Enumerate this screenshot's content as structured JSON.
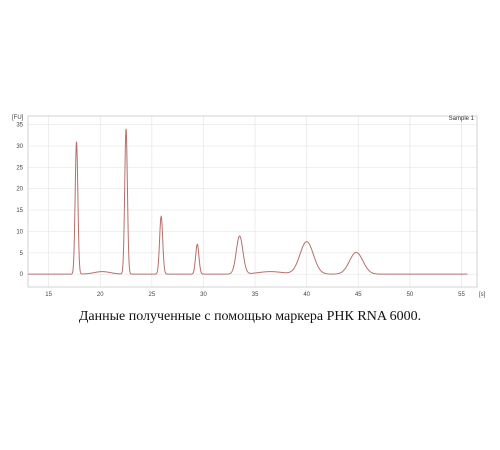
{
  "chart_data": {
    "type": "line",
    "sample_label": "Sample 1",
    "ylabel_unit": "[FU]",
    "xlabel_unit": "[s]",
    "xlim": [
      13,
      56.5
    ],
    "ylim": [
      -3,
      37
    ],
    "x_ticks": [
      15,
      20,
      25,
      30,
      35,
      40,
      45,
      50,
      55
    ],
    "y_ticks": [
      0,
      5,
      10,
      15,
      20,
      25,
      30,
      35
    ],
    "grid": true,
    "baseline": 0,
    "peaks": [
      {
        "x": 17.7,
        "y": 31,
        "width": 0.13
      },
      {
        "x": 20.2,
        "y": 0.6,
        "width": 0.8
      },
      {
        "x": 22.5,
        "y": 34,
        "width": 0.13
      },
      {
        "x": 25.9,
        "y": 13.5,
        "width": 0.15
      },
      {
        "x": 29.4,
        "y": 7,
        "width": 0.16
      },
      {
        "x": 33.5,
        "y": 8.9,
        "width": 0.32
      },
      {
        "x": 36.5,
        "y": 0.6,
        "width": 1.2
      },
      {
        "x": 40.0,
        "y": 7.6,
        "width": 0.65
      },
      {
        "x": 44.8,
        "y": 5.1,
        "width": 0.65
      }
    ],
    "series": [
      {
        "color": "#b5706a"
      }
    ]
  },
  "caption": "Данные полученные с помощью маркера РНК RNA 6000."
}
